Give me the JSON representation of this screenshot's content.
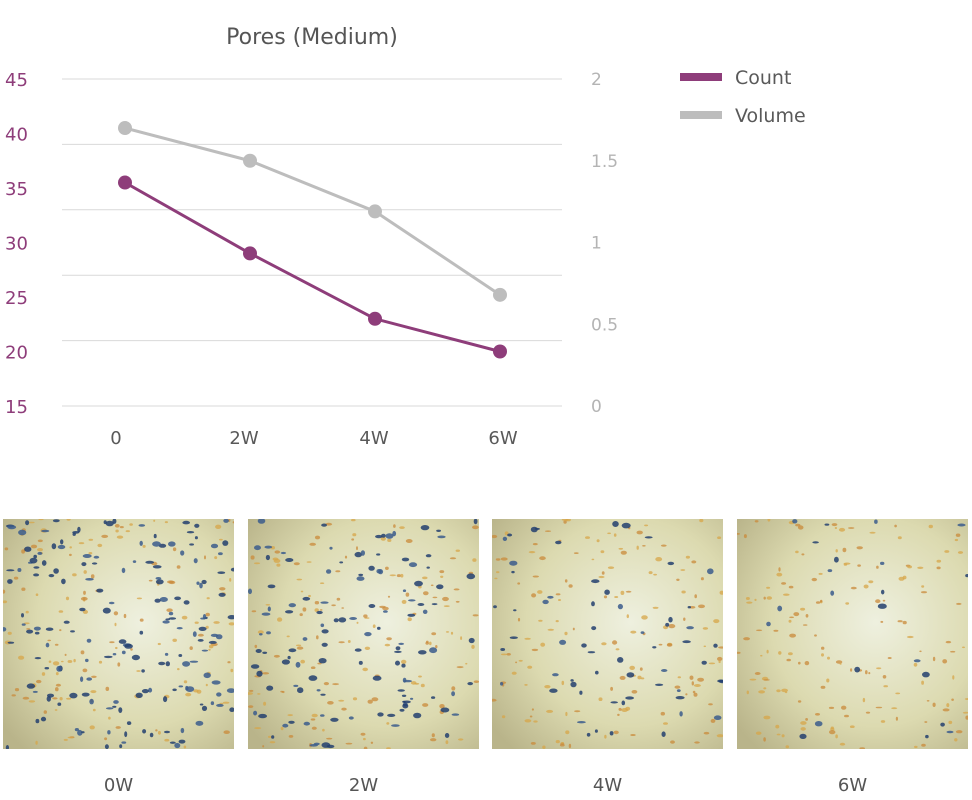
{
  "chart_data": {
    "type": "line",
    "title": "Pores (Medium)",
    "categories": [
      "0",
      "2W",
      "4W",
      "6W"
    ],
    "series": [
      {
        "name": "Count",
        "axis": "left",
        "color": "#8e3d7a",
        "values": [
          35.5,
          29,
          23,
          20
        ]
      },
      {
        "name": "Volume",
        "axis": "right",
        "color": "#bdbdbd",
        "values": [
          1.7,
          1.5,
          1.19,
          0.68
        ]
      }
    ],
    "ylim_left": [
      15,
      45
    ],
    "yticks_left": [
      "15",
      "20",
      "25",
      "30",
      "35",
      "40",
      "45"
    ],
    "ylim_right": [
      0,
      2
    ],
    "yticks_right": [
      "0",
      "0.5",
      "1",
      "1.5",
      "2"
    ],
    "grid": true,
    "legend_position": "right"
  },
  "photos": [
    {
      "caption": "0W",
      "pore_density": "high"
    },
    {
      "caption": "2W",
      "pore_density": "medium-high"
    },
    {
      "caption": "4W",
      "pore_density": "medium"
    },
    {
      "caption": "6W",
      "pore_density": "low"
    }
  ]
}
